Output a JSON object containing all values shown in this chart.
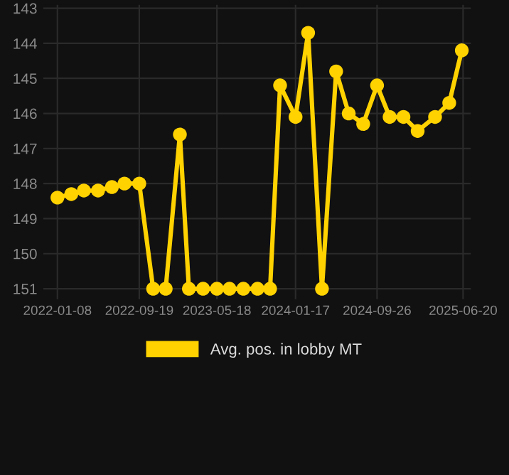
{
  "chart_data": {
    "type": "line",
    "x": [
      "2022-01-08",
      "2022-02-20",
      "2022-03-31",
      "2022-05-14",
      "2022-06-26",
      "2022-08-04",
      "2022-09-19",
      "2022-11-01",
      "2022-12-10",
      "2023-01-23",
      "2023-02-20",
      "2023-04-05",
      "2023-05-18",
      "2023-06-26",
      "2023-08-08",
      "2023-09-21",
      "2023-10-30",
      "2023-11-30",
      "2024-01-17",
      "2024-02-25",
      "2024-04-08",
      "2024-05-22",
      "2024-06-30",
      "2024-08-14",
      "2024-09-26",
      "2024-11-04",
      "2024-12-17",
      "2025-01-30",
      "2025-03-25",
      "2025-05-08",
      "2025-06-16"
    ],
    "series": [
      {
        "name": "Avg. pos. in lobby MT",
        "color": "#ffd200",
        "values": [
          148.4,
          148.3,
          148.2,
          148.2,
          148.1,
          148.0,
          148.0,
          151,
          151,
          146.6,
          151,
          151,
          151,
          151,
          151,
          151,
          151,
          145.2,
          146.1,
          143.7,
          151,
          144.8,
          146.0,
          146.3,
          145.2,
          146.1,
          146.1,
          146.5,
          146.1,
          145.7,
          144.2
        ]
      }
    ],
    "ylim": [
      151.3,
      142.9
    ],
    "yticks": [
      143,
      144,
      145,
      146,
      147,
      148,
      149,
      150,
      151
    ],
    "xlim": [
      "2021-11-25",
      "2025-07-14"
    ],
    "xticks": [
      {
        "value": "2022-01-08",
        "label": "2022-01-08"
      },
      {
        "value": "2022-09-19",
        "label": "2022-09-19"
      },
      {
        "value": "2023-05-18",
        "label": "2023-05-18"
      },
      {
        "value": "2024-01-17",
        "label": "2024-01-17"
      },
      {
        "value": "2024-09-26",
        "label": "2024-09-26"
      },
      {
        "value": "2025-06-20",
        "label": "2025-06-20"
      }
    ],
    "grid": true,
    "legend": "bottom",
    "marker": "circle",
    "line_style": "solid"
  }
}
